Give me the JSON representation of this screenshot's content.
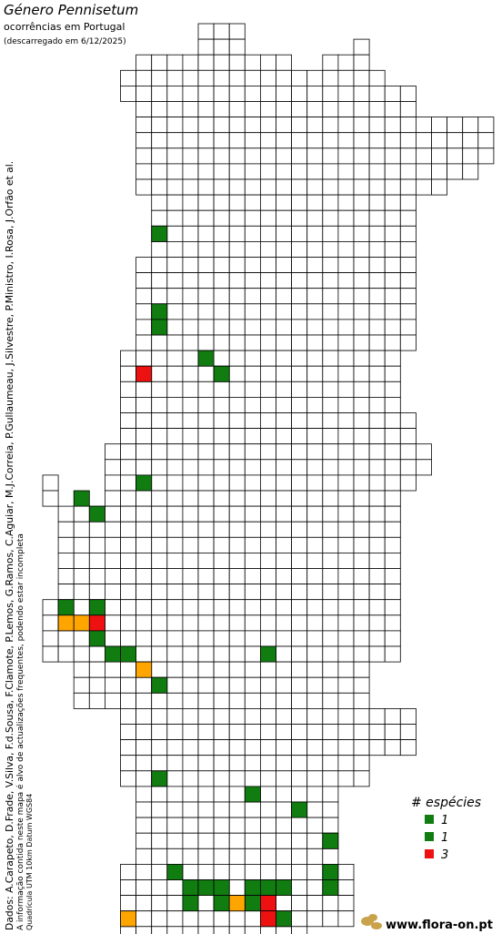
{
  "header": {
    "title": "Género Pennisetum",
    "subtitle": "ocorrências em Portugal",
    "download": "(descarregado em 6/12/2025)"
  },
  "credits": {
    "authors": "Dados: A.Carapeto, D.Frade, V.Silva, F.d.Sousa, F.Clamote, P.Lemos, G.Ramos, C.Aguiar, M.J.Correia, P.Gullaumeau, J.Silvestre, P.Ministro, I.Rosa, J.Orfão et al.",
    "notice": "A informação contida neste mapa é alvo de actualizações frequentes, podendo estar incompleta",
    "grid": "Quadrícula UTM 10km Datum WGS84"
  },
  "legend": {
    "title": "# espécies",
    "items": [
      {
        "label": "1",
        "color": "#117d11"
      },
      {
        "label": "1",
        "color": "#117d11"
      },
      {
        "label": "3",
        "color": "#ee1111"
      }
    ]
  },
  "logo": "www.flora-on.pt"
}
